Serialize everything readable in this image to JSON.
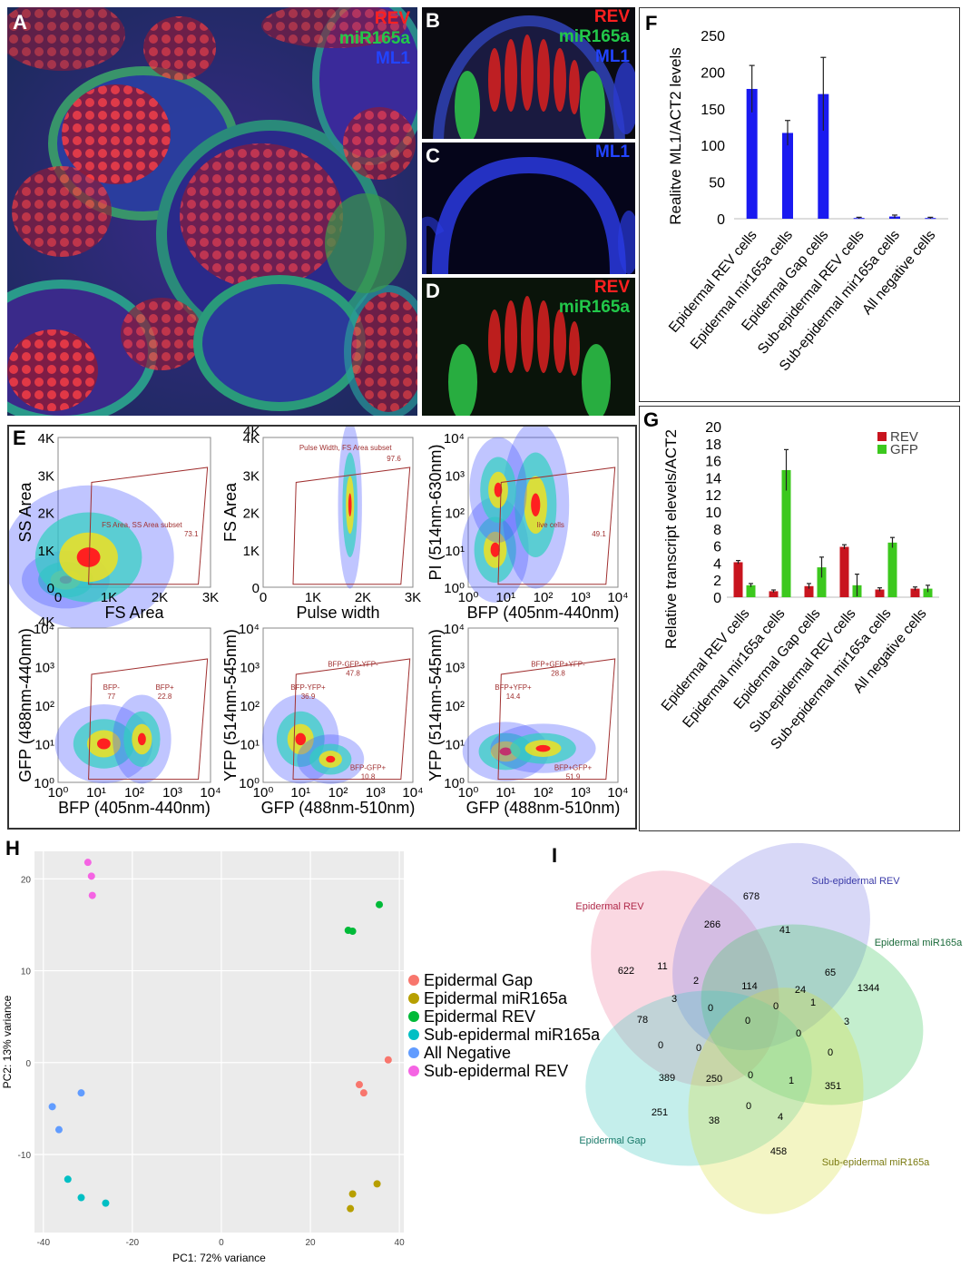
{
  "panel_labels": {
    "A": "A",
    "B": "B",
    "C": "C",
    "D": "D",
    "E": "E",
    "F": "F",
    "G": "G",
    "H": "H",
    "I": "I"
  },
  "colors": {
    "rev": "#ff2020",
    "mir": "#22c84a",
    "ml1": "#2244ff",
    "bar_blue": "#1a1af0",
    "bar_red": "#c8141e",
    "bar_green": "#3cc81e"
  },
  "micrographs": {
    "A": {
      "channels": [
        "REV",
        "miR165a",
        "ML1"
      ]
    },
    "B": {
      "channels": [
        "REV",
        "miR165a",
        "ML1"
      ]
    },
    "C": {
      "channels": [
        "ML1"
      ]
    },
    "D": {
      "channels": [
        "REV",
        "miR165a"
      ]
    }
  },
  "flow": {
    "plots": [
      {
        "ylabel": "SS Area",
        "xlabel": "FS Area",
        "yticks": [
          "4K",
          "3K",
          "2K",
          "1K",
          "0"
        ],
        "xticks": [
          "0",
          "1K",
          "2K",
          "3K"
        ],
        "gate": "FS Area, SS Area subset",
        "gate_value": "73.1"
      },
      {
        "ylabel": "FS Area",
        "xlabel": "Pulse width",
        "yticks": [
          "4K",
          "3K",
          "2K",
          "1K",
          "0"
        ],
        "xticks": [
          "0",
          "1K",
          "2K",
          "3K"
        ],
        "gate": "Pulse Width, FS Area subset",
        "gate_value": "97.6",
        "corner": "4K"
      },
      {
        "ylabel": "PI (514nm-630nm)",
        "xlabel": "BFP (405nm-440nm)",
        "yticks": [
          "10⁴",
          "10³",
          "10²",
          "10¹",
          "10⁰"
        ],
        "xticks": [
          "10⁰",
          "10¹",
          "10²",
          "10³",
          "10⁴"
        ],
        "gate": "live cells",
        "gate_value": "49.1"
      },
      {
        "ylabel": "GFP (488nm-440nm)",
        "xlabel": "BFP (405nm-440nm)",
        "yticks": [
          "10⁴",
          "10³",
          "10²",
          "10¹",
          "10⁰"
        ],
        "xticks": [
          "10⁰",
          "10¹",
          "10²",
          "10³",
          "10⁴"
        ],
        "corner": "4K",
        "gates": [
          {
            "name": "BFP-",
            "value": "77"
          },
          {
            "name": "BFP+",
            "value": "22.8"
          }
        ]
      },
      {
        "ylabel": "YFP (514nm-545nm)",
        "xlabel": "GFP (488nm-510nm)",
        "yticks": [
          "10⁴",
          "10³",
          "10²",
          "10¹",
          "10⁰"
        ],
        "xticks": [
          "10⁰",
          "10¹",
          "10²",
          "10³",
          "10⁴"
        ],
        "gates": [
          {
            "name": "BFP-YFP+",
            "value": "36.9"
          },
          {
            "name": "BFP-GFP-YFP-",
            "value": "47.8"
          },
          {
            "name": "BFP-GFP+",
            "value": "10.8"
          }
        ]
      },
      {
        "ylabel": "YFP (514nm-545nm)",
        "xlabel": "GFP (488nm-510nm)",
        "yticks": [
          "10⁴",
          "10³",
          "10²",
          "10¹",
          "10⁰"
        ],
        "xticks": [
          "10⁰",
          "10¹",
          "10²",
          "10³",
          "10⁴"
        ],
        "gates": [
          {
            "name": "BFP+YFP+",
            "value": "14.4"
          },
          {
            "name": "BFP+GFP+YFP-",
            "value": "28.8"
          },
          {
            "name": "BFP+GFP+",
            "value": "51.9"
          }
        ]
      }
    ]
  },
  "chart_data": [
    {
      "id": "F",
      "type": "bar",
      "ylabel": "Realitve ML1/ACT2 levels",
      "categories": [
        "Epidermal REV cells",
        "Epidermal mir165a cells",
        "Epidermal Gap cells",
        "Sub-epidermal REV cells",
        "Sub-epidermal mir165a cells",
        "All negative cells"
      ],
      "values": [
        177,
        117,
        170,
        1,
        3,
        1
      ],
      "errors": [
        32,
        17,
        50,
        1,
        2,
        1
      ],
      "ylim": [
        0,
        250
      ],
      "yticks": [
        0,
        50,
        100,
        150,
        200,
        250
      ]
    },
    {
      "id": "G",
      "type": "bar",
      "ylabel": "Relative transcript elevels/ACT2",
      "categories": [
        "Epidermal REV cells",
        "Epidermal mir165a cells",
        "Epidermal Gap cells",
        "Sub-epidermal REV cells",
        "Sub-epidermal mir165a cells",
        "All negative cells"
      ],
      "series": [
        {
          "name": "REV",
          "values": [
            4.1,
            0.7,
            1.3,
            5.9,
            0.9,
            1.0
          ],
          "errors": [
            0.2,
            0.15,
            0.3,
            0.25,
            0.2,
            0.2
          ]
        },
        {
          "name": "GFP",
          "values": [
            1.4,
            14.9,
            3.5,
            1.4,
            6.4,
            1.0
          ],
          "errors": [
            0.2,
            2.4,
            1.2,
            1.3,
            0.6,
            0.4
          ]
        }
      ],
      "ylim": [
        0,
        20
      ],
      "yticks": [
        0,
        2,
        4,
        6,
        8,
        10,
        12,
        14,
        16,
        18,
        20
      ]
    },
    {
      "id": "H",
      "type": "scatter",
      "xlabel": "PC1: 72% variance",
      "ylabel": "PC2: 13% variance",
      "xlim": [
        -42,
        41
      ],
      "ylim": [
        -18.5,
        23
      ],
      "xticks": [
        -40,
        -20,
        0,
        20,
        40
      ],
      "yticks": [
        -10,
        0,
        10,
        20
      ],
      "series": [
        {
          "name": "Epidermal Gap",
          "color": "#f8766d",
          "points": [
            [
              37.5,
              0.3
            ],
            [
              31,
              -2.4
            ],
            [
              32,
              -3.3
            ]
          ]
        },
        {
          "name": "Epidermal miR165a",
          "color": "#b79f00",
          "points": [
            [
              29.5,
              -14.3
            ],
            [
              35,
              -13.2
            ],
            [
              29,
              -15.9
            ]
          ]
        },
        {
          "name": "Epidermal REV",
          "color": "#00ba38",
          "points": [
            [
              28.5,
              14.4
            ],
            [
              29.5,
              14.3
            ],
            [
              35.5,
              17.2
            ]
          ]
        },
        {
          "name": "Sub-epidermal miR165a",
          "color": "#00bfc4",
          "points": [
            [
              -34.5,
              -12.7
            ],
            [
              -31.5,
              -14.7
            ],
            [
              -26,
              -15.3
            ]
          ]
        },
        {
          "name": "All Negative",
          "color": "#619cff",
          "points": [
            [
              -38,
              -4.8
            ],
            [
              -36.5,
              -7.3
            ],
            [
              -31.5,
              -3.3
            ]
          ]
        },
        {
          "name": "Sub-epidermal REV",
          "color": "#f564e3",
          "points": [
            [
              -30,
              21.8
            ],
            [
              -29.2,
              20.3
            ],
            [
              -29,
              18.2
            ]
          ]
        }
      ]
    }
  ],
  "venn": {
    "sets": [
      {
        "name": "Epidermal REV",
        "color": "#b02a4a"
      },
      {
        "name": "Sub-epidermal REV",
        "color": "#3a3aa8"
      },
      {
        "name": "Epidermal miR165a",
        "color": "#1a6a3a"
      },
      {
        "name": "Epidermal Gap",
        "color": "#1a7a6a"
      },
      {
        "name": "Sub-epidermal miR165a",
        "color": "#7a7a10"
      }
    ],
    "counts": [
      "678",
      "266",
      "41",
      "622",
      "11",
      "2",
      "114",
      "24",
      "65",
      "1344",
      "0",
      "0",
      "3",
      "1",
      "78",
      "0",
      "0",
      "0",
      "3",
      "0",
      "0",
      "389",
      "250",
      "0",
      "1",
      "351",
      "251",
      "0",
      "38",
      "4",
      "458"
    ]
  }
}
